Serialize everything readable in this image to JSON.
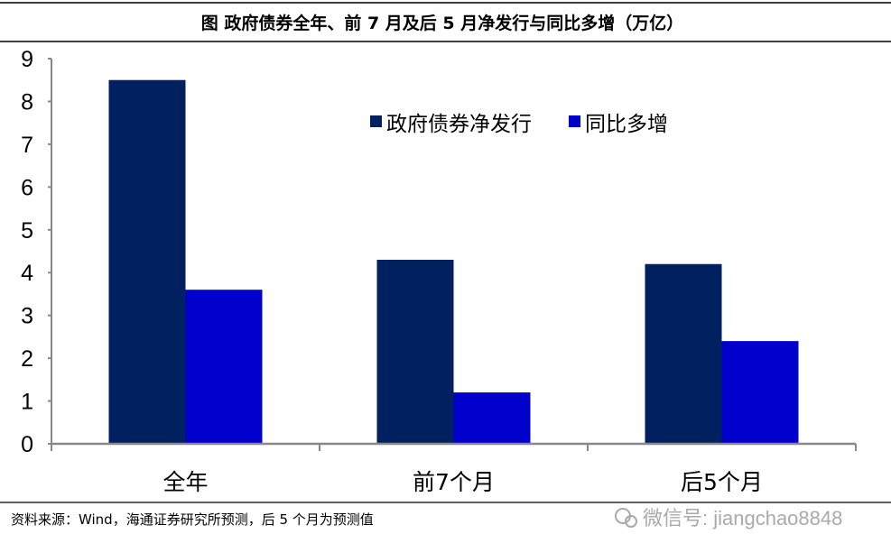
{
  "chart_data": {
    "type": "bar",
    "title": "图  政府债券全年、前 7 月及后 5 月净发行与同比多增（万亿）",
    "categories": [
      "全年",
      "前7个月",
      "后5个月"
    ],
    "series": [
      {
        "name": "政府债券净发行",
        "color": "#002060",
        "values": [
          8.5,
          4.3,
          4.2
        ]
      },
      {
        "name": "同比多增",
        "color": "#0000CC",
        "values": [
          3.6,
          1.2,
          2.4
        ]
      }
    ],
    "ylim": [
      0,
      9
    ],
    "yticks": [
      "0",
      "1",
      "2",
      "3",
      "4",
      "5",
      "6",
      "7",
      "8",
      "9"
    ],
    "grid": false,
    "legend": "top-right",
    "source": "资料来源：Wind，海通证券研究所预测，后 5 个月为预测值",
    "watermark": "微信号: jiangchao8848"
  }
}
